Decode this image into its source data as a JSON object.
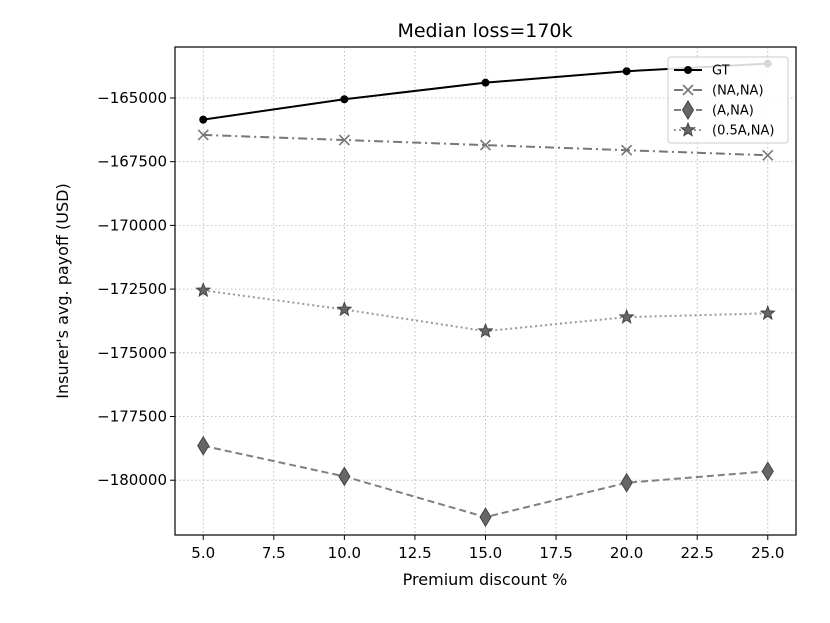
{
  "chart_data": {
    "type": "line",
    "title": "Median loss=170k",
    "xlabel": "Premium discount %",
    "ylabel": "Insurer's avg. payoff (USD)",
    "x": [
      5.0,
      10.0,
      15.0,
      20.0,
      25.0
    ],
    "xlim": [
      4.0,
      26.0
    ],
    "ylim": [
      -182150,
      -163000
    ],
    "x_ticks": [
      5.0,
      7.5,
      10.0,
      12.5,
      15.0,
      17.5,
      20.0,
      22.5,
      25.0
    ],
    "x_tick_labels": [
      "5.0",
      "7.5",
      "10.0",
      "12.5",
      "15.0",
      "17.5",
      "20.0",
      "22.5",
      "25.0"
    ],
    "y_ticks": [
      -165000,
      -167500,
      -170000,
      -172500,
      -175000,
      -177500,
      -180000
    ],
    "y_tick_labels": [
      "−165000",
      "−167500",
      "−170000",
      "−172500",
      "−175000",
      "−177500",
      "−180000"
    ],
    "grid": true,
    "legend_position": "top-right",
    "series": [
      {
        "name": "GT",
        "values": [
          -165850,
          -165050,
          -164400,
          -163950,
          -163650
        ],
        "color": "#000000",
        "dash": "solid",
        "marker": "circle"
      },
      {
        "name": "(NA,NA)",
        "values": [
          -166450,
          -166650,
          -166850,
          -167050,
          -167250
        ],
        "color": "#777777",
        "dash": "dashdot",
        "marker": "x"
      },
      {
        "name": "(A,NA)",
        "values": [
          -178650,
          -179850,
          -181450,
          -180100,
          -179650
        ],
        "color": "#808080",
        "dash": "dashed",
        "marker": "diamond"
      },
      {
        "name": "(0.5A,NA)",
        "values": [
          -172550,
          -173300,
          -174150,
          -173600,
          -173450
        ],
        "color": "#999999",
        "dash": "dotted",
        "marker": "star"
      }
    ]
  }
}
